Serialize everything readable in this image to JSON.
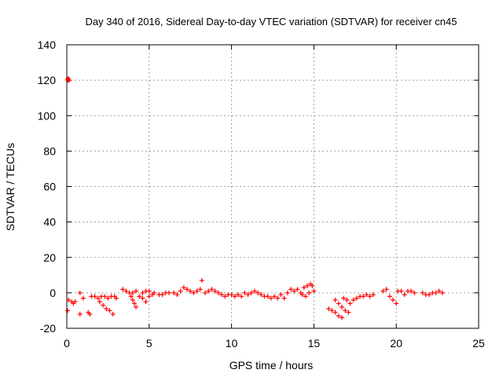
{
  "chart_data": {
    "type": "scatter",
    "title": "Day 340 of 2016, Sidereal Day-to-day VTEC variation (SDTVAR) for receiver cn45",
    "xlabel": "GPS time / hours",
    "ylabel": "SDTVAR / TECUs",
    "xlim": [
      0,
      25
    ],
    "ylim": [
      -20,
      140
    ],
    "xticks": [
      "0",
      "5",
      "10",
      "15",
      "20",
      "25"
    ],
    "yticks": [
      "-20",
      "0",
      "20",
      "40",
      "60",
      "80",
      "100",
      "120",
      "140"
    ],
    "grid": true,
    "marker": "+",
    "color": "#ff0000",
    "series": [
      {
        "name": "SDTVAR",
        "points": [
          [
            0.05,
            120.5
          ],
          [
            0.1,
            121.0
          ],
          [
            0.15,
            120.0
          ],
          [
            0.08,
            119.8
          ],
          [
            0.05,
            -10
          ],
          [
            0.1,
            -4
          ],
          [
            0.3,
            -5
          ],
          [
            0.5,
            -5
          ],
          [
            0.4,
            -6
          ],
          [
            0.8,
            -12
          ],
          [
            0.8,
            0
          ],
          [
            1.0,
            -3
          ],
          [
            1.3,
            -11
          ],
          [
            1.4,
            -12
          ],
          [
            1.5,
            -2
          ],
          [
            1.7,
            -2
          ],
          [
            1.9,
            -3
          ],
          [
            2.0,
            -5
          ],
          [
            2.2,
            -7
          ],
          [
            2.4,
            -9
          ],
          [
            2.6,
            -10
          ],
          [
            2.8,
            -12
          ],
          [
            2.1,
            -2
          ],
          [
            2.3,
            -2
          ],
          [
            2.5,
            -3
          ],
          [
            2.7,
            -2
          ],
          [
            2.9,
            -2
          ],
          [
            3.0,
            -3
          ],
          [
            3.4,
            2
          ],
          [
            3.6,
            1
          ],
          [
            3.8,
            0
          ],
          [
            4.0,
            0
          ],
          [
            4.2,
            1
          ],
          [
            3.9,
            -2
          ],
          [
            4.0,
            -4
          ],
          [
            4.1,
            -6
          ],
          [
            4.2,
            -8
          ],
          [
            4.4,
            -2
          ],
          [
            4.6,
            -3
          ],
          [
            4.8,
            -5
          ],
          [
            5.0,
            -2
          ],
          [
            5.2,
            -1
          ],
          [
            4.6,
            0
          ],
          [
            4.8,
            1
          ],
          [
            5.0,
            1
          ],
          [
            5.3,
            0
          ],
          [
            5.6,
            -1
          ],
          [
            5.8,
            -1
          ],
          [
            6.0,
            0
          ],
          [
            6.2,
            0
          ],
          [
            6.5,
            0
          ],
          [
            6.7,
            -1
          ],
          [
            6.9,
            1
          ],
          [
            7.1,
            3
          ],
          [
            7.3,
            2
          ],
          [
            7.5,
            1
          ],
          [
            7.7,
            0
          ],
          [
            7.9,
            1
          ],
          [
            8.1,
            2
          ],
          [
            8.2,
            7
          ],
          [
            8.4,
            0
          ],
          [
            8.6,
            1
          ],
          [
            8.8,
            2
          ],
          [
            9.0,
            1
          ],
          [
            9.2,
            0
          ],
          [
            9.4,
            -1
          ],
          [
            9.6,
            -2
          ],
          [
            9.8,
            -1
          ],
          [
            10.0,
            -1
          ],
          [
            10.2,
            -2
          ],
          [
            10.4,
            -1
          ],
          [
            10.6,
            -2
          ],
          [
            10.8,
            0
          ],
          [
            11.0,
            -1
          ],
          [
            11.2,
            0
          ],
          [
            11.4,
            1
          ],
          [
            11.6,
            0
          ],
          [
            11.8,
            -1
          ],
          [
            12.0,
            -2
          ],
          [
            12.2,
            -2
          ],
          [
            12.4,
            -3
          ],
          [
            12.6,
            -2
          ],
          [
            12.8,
            -3
          ],
          [
            13.0,
            -1
          ],
          [
            13.2,
            -3
          ],
          [
            13.4,
            0
          ],
          [
            13.6,
            2
          ],
          [
            13.8,
            1
          ],
          [
            14.0,
            2
          ],
          [
            14.2,
            0
          ],
          [
            14.4,
            3
          ],
          [
            14.6,
            4
          ],
          [
            14.8,
            5
          ],
          [
            14.9,
            4
          ],
          [
            15.0,
            1
          ],
          [
            14.3,
            -1
          ],
          [
            14.5,
            -2
          ],
          [
            14.7,
            0
          ],
          [
            15.9,
            -9
          ],
          [
            16.1,
            -10
          ],
          [
            16.3,
            -11
          ],
          [
            16.5,
            -13
          ],
          [
            16.7,
            -14
          ],
          [
            16.3,
            -4
          ],
          [
            16.5,
            -6
          ],
          [
            16.7,
            -8
          ],
          [
            16.9,
            -10
          ],
          [
            17.1,
            -11
          ],
          [
            16.8,
            -3
          ],
          [
            17.0,
            -4
          ],
          [
            17.2,
            -6
          ],
          [
            17.4,
            -4
          ],
          [
            17.6,
            -3
          ],
          [
            17.8,
            -2
          ],
          [
            18.0,
            -2
          ],
          [
            18.2,
            -1
          ],
          [
            18.4,
            -2
          ],
          [
            18.6,
            -1
          ],
          [
            19.2,
            1
          ],
          [
            19.4,
            2
          ],
          [
            19.6,
            -2
          ],
          [
            19.8,
            -4
          ],
          [
            20.0,
            -6
          ],
          [
            20.1,
            1
          ],
          [
            20.3,
            1
          ],
          [
            20.5,
            -1
          ],
          [
            20.7,
            1
          ],
          [
            20.9,
            1
          ],
          [
            21.1,
            0
          ],
          [
            21.6,
            0
          ],
          [
            21.8,
            -1
          ],
          [
            22.0,
            -1
          ],
          [
            22.2,
            0
          ],
          [
            22.4,
            0
          ],
          [
            22.6,
            1
          ],
          [
            22.8,
            0
          ]
        ]
      }
    ]
  }
}
